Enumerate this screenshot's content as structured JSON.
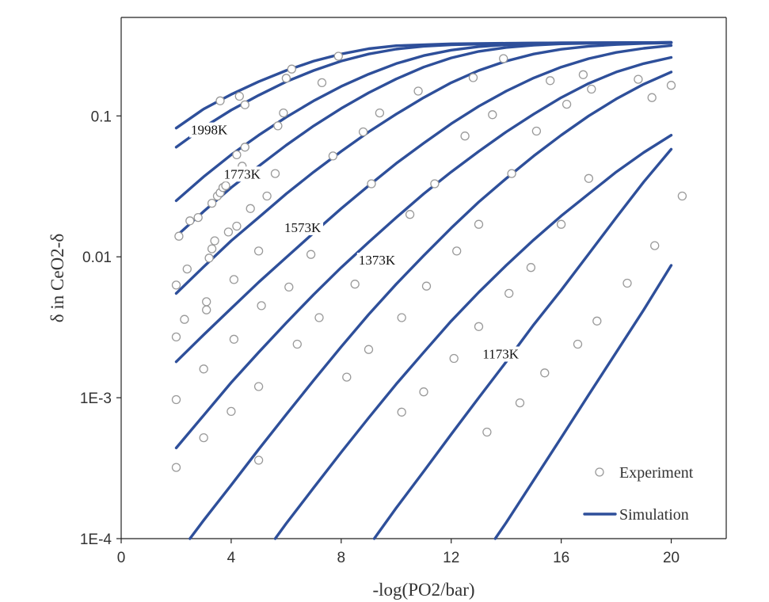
{
  "chart_data": {
    "type": "scatter",
    "xlabel": "-log(PO2/bar)",
    "ylabel": "δ in CeO2-δ",
    "xlim": [
      0,
      22
    ],
    "ylim": [
      0.0001,
      0.5
    ],
    "yscale": "log",
    "x_ticks": [
      0,
      4,
      8,
      12,
      16,
      20
    ],
    "y_ticks": [
      {
        "value": 0.1,
        "label": "0.1"
      },
      {
        "value": 0.01,
        "label": "0.01"
      },
      {
        "value": 0.001,
        "label": "1E-3"
      },
      {
        "value": 0.0001,
        "label": "1E-4"
      }
    ],
    "grid": false,
    "legend": {
      "position": "bottom-right",
      "entries": [
        {
          "label": "Experiment",
          "marker": "open-circle"
        },
        {
          "label": "Simulation",
          "marker": "line"
        }
      ]
    },
    "colors": {
      "simulation": "#2E4F9A",
      "experiment": "#9A9A9A",
      "axis": "#222222"
    },
    "annotations": [
      {
        "text": "1998K",
        "x": 3.2,
        "y": 0.074
      },
      {
        "text": "1773K",
        "x": 4.4,
        "y": 0.036
      },
      {
        "text": "1573K",
        "x": 6.6,
        "y": 0.015
      },
      {
        "text": "1373K",
        "x": 9.3,
        "y": 0.0088
      },
      {
        "text": "1173K",
        "x": 13.8,
        "y": 0.0019
      }
    ],
    "series": [
      {
        "type": "line",
        "points": [
          [
            2.0,
            0.082
          ],
          [
            3.0,
            0.112
          ],
          [
            4.0,
            0.142
          ],
          [
            5.0,
            0.175
          ],
          [
            6.0,
            0.21
          ],
          [
            7.0,
            0.245
          ],
          [
            8.0,
            0.275
          ],
          [
            9.0,
            0.3
          ],
          [
            10.0,
            0.315
          ],
          [
            12.0,
            0.325
          ],
          [
            14.0,
            0.328
          ],
          [
            16.0,
            0.33
          ],
          [
            18.0,
            0.331
          ],
          [
            20.0,
            0.332
          ]
        ]
      },
      {
        "type": "line",
        "points": [
          [
            2.0,
            0.06
          ],
          [
            3.0,
            0.083
          ],
          [
            4.0,
            0.11
          ],
          [
            5.0,
            0.14
          ],
          [
            6.0,
            0.175
          ],
          [
            7.0,
            0.21
          ],
          [
            8.0,
            0.245
          ],
          [
            9.0,
            0.275
          ],
          [
            10.0,
            0.298
          ],
          [
            11.0,
            0.312
          ],
          [
            12.0,
            0.32
          ],
          [
            14.0,
            0.327
          ],
          [
            16.0,
            0.33
          ],
          [
            18.0,
            0.331
          ],
          [
            20.0,
            0.332
          ]
        ]
      },
      {
        "type": "line",
        "points": [
          [
            2.0,
            0.025
          ],
          [
            3.0,
            0.037
          ],
          [
            4.0,
            0.053
          ],
          [
            5.0,
            0.073
          ],
          [
            6.0,
            0.098
          ],
          [
            7.0,
            0.128
          ],
          [
            8.0,
            0.162
          ],
          [
            9.0,
            0.198
          ],
          [
            10.0,
            0.235
          ],
          [
            11.0,
            0.268
          ],
          [
            12.0,
            0.293
          ],
          [
            13.0,
            0.31
          ],
          [
            14.0,
            0.32
          ],
          [
            16.0,
            0.328
          ],
          [
            18.0,
            0.331
          ],
          [
            20.0,
            0.332
          ]
        ]
      },
      {
        "type": "line",
        "points": [
          [
            2.0,
            0.014
          ],
          [
            3.0,
            0.021
          ],
          [
            4.0,
            0.031
          ],
          [
            5.0,
            0.044
          ],
          [
            6.0,
            0.062
          ],
          [
            7.0,
            0.085
          ],
          [
            8.0,
            0.113
          ],
          [
            9.0,
            0.146
          ],
          [
            10.0,
            0.183
          ],
          [
            11.0,
            0.222
          ],
          [
            12.0,
            0.258
          ],
          [
            13.0,
            0.287
          ],
          [
            14.0,
            0.306
          ],
          [
            15.0,
            0.318
          ],
          [
            16.0,
            0.325
          ],
          [
            18.0,
            0.33
          ],
          [
            20.0,
            0.332
          ]
        ]
      },
      {
        "type": "line",
        "points": [
          [
            2.0,
            0.0055
          ],
          [
            3.0,
            0.0085
          ],
          [
            4.0,
            0.013
          ],
          [
            5.0,
            0.019
          ],
          [
            6.0,
            0.028
          ],
          [
            7.0,
            0.04
          ],
          [
            8.0,
            0.056
          ],
          [
            9.0,
            0.077
          ],
          [
            10.0,
            0.103
          ],
          [
            11.0,
            0.135
          ],
          [
            12.0,
            0.172
          ],
          [
            13.0,
            0.21
          ],
          [
            14.0,
            0.245
          ],
          [
            15.0,
            0.275
          ],
          [
            16.0,
            0.297
          ],
          [
            17.0,
            0.312
          ],
          [
            18.0,
            0.321
          ],
          [
            19.0,
            0.327
          ],
          [
            20.0,
            0.33
          ]
        ]
      },
      {
        "type": "line",
        "points": [
          [
            2.0,
            0.0018
          ],
          [
            3.0,
            0.0028
          ],
          [
            4.0,
            0.0043
          ],
          [
            5.0,
            0.0066
          ],
          [
            6.0,
            0.0099
          ],
          [
            7.0,
            0.0148
          ],
          [
            8.0,
            0.022
          ],
          [
            9.0,
            0.032
          ],
          [
            10.0,
            0.046
          ],
          [
            11.0,
            0.064
          ],
          [
            12.0,
            0.088
          ],
          [
            13.0,
            0.117
          ],
          [
            14.0,
            0.15
          ],
          [
            15.0,
            0.186
          ],
          [
            16.0,
            0.222
          ],
          [
            17.0,
            0.255
          ],
          [
            18.0,
            0.282
          ],
          [
            19.0,
            0.302
          ],
          [
            20.0,
            0.316
          ]
        ]
      },
      {
        "type": "line",
        "points": [
          [
            2.0,
            0.00044
          ],
          [
            3.0,
            0.00075
          ],
          [
            4.0,
            0.00128
          ],
          [
            5.0,
            0.0021
          ],
          [
            6.0,
            0.0034
          ],
          [
            7.0,
            0.0054
          ],
          [
            8.0,
            0.0084
          ],
          [
            9.0,
            0.0127
          ],
          [
            10.0,
            0.019
          ],
          [
            11.0,
            0.028
          ],
          [
            12.0,
            0.04
          ],
          [
            13.0,
            0.056
          ],
          [
            14.0,
            0.077
          ],
          [
            15.0,
            0.103
          ],
          [
            16.0,
            0.135
          ],
          [
            17.0,
            0.17
          ],
          [
            18.0,
            0.205
          ],
          [
            19.0,
            0.235
          ],
          [
            20.0,
            0.26
          ]
        ]
      },
      {
        "type": "line",
        "points": [
          [
            2.5,
            0.0001
          ],
          [
            3.0,
            0.000135
          ],
          [
            4.0,
            0.00024
          ],
          [
            5.0,
            0.00043
          ],
          [
            6.0,
            0.00076
          ],
          [
            7.0,
            0.00133
          ],
          [
            8.0,
            0.0023
          ],
          [
            9.0,
            0.0039
          ],
          [
            10.0,
            0.0064
          ],
          [
            11.0,
            0.0102
          ],
          [
            12.0,
            0.016
          ],
          [
            13.0,
            0.0245
          ],
          [
            14.0,
            0.036
          ],
          [
            15.0,
            0.052
          ],
          [
            16.0,
            0.073
          ],
          [
            17.0,
            0.1
          ],
          [
            18.0,
            0.132
          ],
          [
            19.0,
            0.168
          ],
          [
            20.0,
            0.205
          ]
        ]
      },
      {
        "type": "line",
        "points": [
          [
            5.6,
            0.0001
          ],
          [
            6.0,
            0.000128
          ],
          [
            7.0,
            0.00023
          ],
          [
            8.0,
            0.00041
          ],
          [
            9.0,
            0.00072
          ],
          [
            10.0,
            0.00125
          ],
          [
            11.0,
            0.0021
          ],
          [
            12.0,
            0.0035
          ],
          [
            13.0,
            0.0056
          ],
          [
            14.0,
            0.0087
          ],
          [
            15.0,
            0.0132
          ],
          [
            16.0,
            0.0195
          ],
          [
            17.0,
            0.028
          ],
          [
            18.0,
            0.04
          ],
          [
            19.0,
            0.055
          ],
          [
            20.0,
            0.073
          ]
        ]
      },
      {
        "type": "line",
        "points": [
          [
            9.2,
            0.0001
          ],
          [
            10.0,
            0.000165
          ],
          [
            11.0,
            0.0003
          ],
          [
            12.0,
            0.00055
          ],
          [
            13.0,
            0.001
          ],
          [
            14.0,
            0.0018
          ],
          [
            15.0,
            0.0033
          ],
          [
            16.0,
            0.0058
          ],
          [
            17.0,
            0.0105
          ],
          [
            18.0,
            0.019
          ],
          [
            19.0,
            0.034
          ],
          [
            20.0,
            0.058
          ]
        ]
      },
      {
        "type": "line",
        "points": [
          [
            13.6,
            0.0001
          ],
          [
            14.0,
            0.00013
          ],
          [
            15.0,
            0.00026
          ],
          [
            16.0,
            0.00052
          ],
          [
            17.0,
            0.00105
          ],
          [
            18.0,
            0.0021
          ],
          [
            19.0,
            0.0042
          ],
          [
            20.0,
            0.0087
          ]
        ]
      },
      {
        "type": "scatter",
        "points": [
          [
            2.0,
            0.00032
          ],
          [
            2.0,
            0.00097
          ],
          [
            2.0,
            0.0027
          ],
          [
            2.0,
            0.0063
          ],
          [
            2.1,
            0.014
          ],
          [
            2.3,
            0.0036
          ],
          [
            2.4,
            0.0082
          ],
          [
            2.5,
            0.018
          ],
          [
            2.8,
            0.019
          ],
          [
            3.0,
            0.0016
          ],
          [
            3.0,
            0.00052
          ],
          [
            3.1,
            0.0042
          ],
          [
            3.1,
            0.0048
          ],
          [
            3.2,
            0.0098
          ],
          [
            3.3,
            0.0114
          ],
          [
            3.4,
            0.013
          ],
          [
            3.3,
            0.024
          ],
          [
            3.5,
            0.027
          ],
          [
            3.6,
            0.0285
          ],
          [
            3.7,
            0.031
          ],
          [
            3.8,
            0.032
          ],
          [
            3.9,
            0.015
          ],
          [
            4.0,
            0.0008
          ],
          [
            4.1,
            0.0026
          ],
          [
            4.1,
            0.0069
          ],
          [
            4.2,
            0.0165
          ],
          [
            4.2,
            0.053
          ],
          [
            4.4,
            0.044
          ],
          [
            4.5,
            0.06
          ],
          [
            4.7,
            0.022
          ],
          [
            4.5,
            0.12
          ],
          [
            4.3,
            0.138
          ],
          [
            3.6,
            0.128
          ],
          [
            5.0,
            0.00036
          ],
          [
            5.0,
            0.0012
          ],
          [
            5.1,
            0.0045
          ],
          [
            5.0,
            0.011
          ],
          [
            5.3,
            0.027
          ],
          [
            5.6,
            0.039
          ],
          [
            5.7,
            0.085
          ],
          [
            5.9,
            0.105
          ],
          [
            6.2,
            0.215
          ],
          [
            6.0,
            0.185
          ],
          [
            6.1,
            0.0061
          ],
          [
            6.4,
            0.0024
          ],
          [
            6.9,
            0.0104
          ],
          [
            7.2,
            0.0037
          ],
          [
            7.3,
            0.172
          ],
          [
            7.7,
            0.052
          ],
          [
            7.9,
            0.265
          ],
          [
            8.2,
            0.0014
          ],
          [
            8.5,
            0.0064
          ],
          [
            8.8,
            0.077
          ],
          [
            9.0,
            0.0022
          ],
          [
            9.1,
            0.033
          ],
          [
            9.4,
            0.105
          ],
          [
            10.2,
            0.00079
          ],
          [
            10.2,
            0.0037
          ],
          [
            10.5,
            0.02
          ],
          [
            10.8,
            0.15
          ],
          [
            11.0,
            0.0011
          ],
          [
            11.1,
            0.0062
          ],
          [
            11.4,
            0.033
          ],
          [
            12.1,
            0.0019
          ],
          [
            12.2,
            0.011
          ],
          [
            12.5,
            0.072
          ],
          [
            12.8,
            0.187
          ],
          [
            13.0,
            0.0032
          ],
          [
            13.0,
            0.017
          ],
          [
            13.3,
            0.00057
          ],
          [
            13.5,
            0.102
          ],
          [
            13.9,
            0.255
          ],
          [
            14.1,
            0.0055
          ],
          [
            14.2,
            0.039
          ],
          [
            14.5,
            0.00092
          ],
          [
            14.9,
            0.0084
          ],
          [
            15.1,
            0.078
          ],
          [
            15.4,
            0.0015
          ],
          [
            15.6,
            0.178
          ],
          [
            16.0,
            0.017
          ],
          [
            16.2,
            0.121
          ],
          [
            16.6,
            0.0024
          ],
          [
            16.8,
            0.196
          ],
          [
            17.0,
            0.036
          ],
          [
            17.1,
            0.155
          ],
          [
            17.3,
            0.0035
          ],
          [
            18.4,
            0.0065
          ],
          [
            18.8,
            0.182
          ],
          [
            19.4,
            0.012
          ],
          [
            19.3,
            0.135
          ],
          [
            20.0,
            0.165
          ],
          [
            20.4,
            0.027
          ]
        ]
      }
    ]
  }
}
